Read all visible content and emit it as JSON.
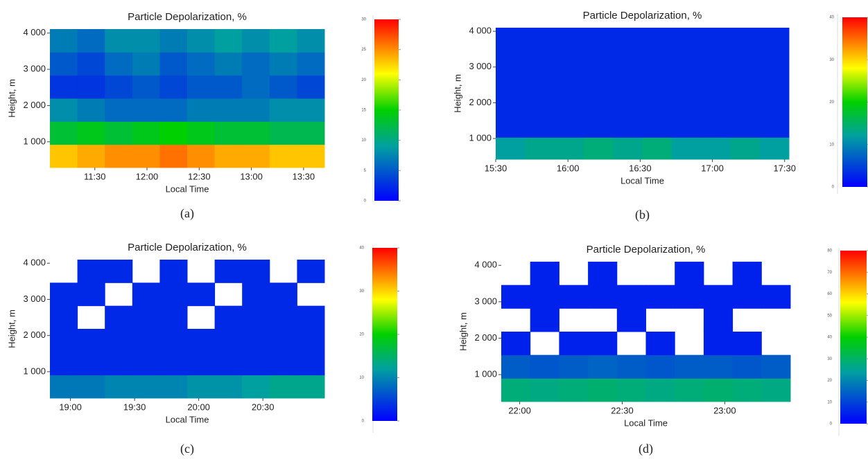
{
  "chart_data": [
    {
      "type": "heatmap",
      "caption": "(a)",
      "title": "Particle Depolarization, %",
      "xlabel": "Local Time",
      "ylabel": "Height, m",
      "xlim": [
        11.07,
        13.7
      ],
      "xticks": [
        {
          "value": 11.5,
          "label": "11:30"
        },
        {
          "value": 12,
          "label": "12:00"
        },
        {
          "value": 12.5,
          "label": "12:30"
        },
        {
          "value": 13,
          "label": "13:00"
        },
        {
          "value": 13.5,
          "label": "13:30"
        }
      ],
      "ylim": [
        290,
        4110
      ],
      "yticks": [
        {
          "value": 1000,
          "label": "1 000"
        },
        {
          "value": 2000,
          "label": "2 000"
        },
        {
          "value": 3000,
          "label": "3 000"
        },
        {
          "value": 4000,
          "label": "4 000"
        }
      ],
      "clim": [
        0,
        30
      ],
      "cticks": [
        0,
        5,
        10,
        15,
        20,
        25,
        30
      ],
      "values": [
        [
          23,
          24,
          25,
          25,
          26,
          25,
          24,
          24,
          23,
          23
        ],
        [
          13,
          14,
          13,
          14,
          15,
          14,
          13,
          13,
          12,
          12
        ],
        [
          8,
          7,
          6,
          6,
          6,
          7,
          7,
          7,
          8,
          8
        ],
        [
          3,
          3,
          4,
          5,
          4,
          5,
          5,
          6,
          5,
          4
        ],
        [
          5,
          4,
          6,
          7,
          5,
          6,
          7,
          6,
          7,
          6
        ],
        [
          7,
          6,
          8,
          8,
          7,
          8,
          9,
          8,
          9,
          8
        ]
      ]
    },
    {
      "type": "heatmap",
      "caption": "(b)",
      "title": "Particle Depolarization, %",
      "xlabel": "Local Time",
      "ylabel": "Height, m",
      "xlim": [
        15.5,
        17.53
      ],
      "xticks": [
        {
          "value": 15.5,
          "label": "15:30"
        },
        {
          "value": 16,
          "label": "16:00"
        },
        {
          "value": 16.5,
          "label": "16:30"
        },
        {
          "value": 17,
          "label": "17:00"
        },
        {
          "value": 17.5,
          "label": "17:30"
        }
      ],
      "ylim": [
        420,
        4100
      ],
      "yticks": [
        {
          "value": 1000,
          "label": "1 000"
        },
        {
          "value": 2000,
          "label": "2 000"
        },
        {
          "value": 3000,
          "label": "3 000"
        },
        {
          "value": 4000,
          "label": "4 000"
        }
      ],
      "clim": [
        0,
        40
      ],
      "cticks": [
        0,
        10,
        20,
        30,
        40
      ],
      "values": [
        [
          12,
          13,
          13,
          14,
          13,
          14,
          12,
          12,
          13,
          12
        ],
        [
          3,
          3,
          3,
          3,
          3,
          3,
          3,
          3,
          3,
          3
        ],
        [
          3,
          3,
          3,
          3,
          3,
          3,
          3,
          3,
          3,
          3
        ],
        [
          3,
          3,
          3,
          3,
          3,
          3,
          3,
          3,
          3,
          3
        ],
        [
          3,
          3,
          3,
          3,
          3,
          3,
          3,
          3,
          3,
          3
        ],
        [
          3,
          3,
          3,
          3,
          3,
          3,
          3,
          3,
          3,
          3
        ]
      ]
    },
    {
      "type": "heatmap",
      "caption": "(c)",
      "title": "Particle Depolarization, %",
      "xlabel": "Local Time",
      "ylabel": "Height, m",
      "xlim": [
        18.84,
        20.98
      ],
      "xticks": [
        {
          "value": 19,
          "label": "19:00"
        },
        {
          "value": 19.5,
          "label": "19:30"
        },
        {
          "value": 20,
          "label": "20:00"
        },
        {
          "value": 20.5,
          "label": "20:30"
        }
      ],
      "ylim": [
        270,
        4100
      ],
      "yticks": [
        {
          "value": 1000,
          "label": "1 000"
        },
        {
          "value": 2000,
          "label": "2 000"
        },
        {
          "value": 3000,
          "label": "3 000"
        },
        {
          "value": 4000,
          "label": "4 000"
        }
      ],
      "clim": [
        0,
        40
      ],
      "cticks": [
        0,
        10,
        20,
        30,
        40
      ],
      "values": [
        [
          9,
          9,
          10,
          10,
          10,
          11,
          11,
          12,
          13,
          13
        ],
        [
          3,
          3,
          3,
          3,
          3,
          3,
          3,
          3,
          3,
          3
        ],
        [
          3,
          3,
          3,
          3,
          3,
          3,
          3,
          3,
          3,
          3
        ],
        [
          3,
          null,
          3,
          3,
          3,
          null,
          3,
          3,
          3,
          3
        ],
        [
          3,
          3,
          null,
          3,
          3,
          3,
          null,
          3,
          3,
          null
        ],
        [
          null,
          3,
          3,
          null,
          3,
          null,
          3,
          3,
          null,
          3
        ]
      ]
    },
    {
      "type": "heatmap",
      "caption": "(d)",
      "title": "Particle Depolarization, %",
      "xlabel": "Local Time",
      "ylabel": "Height, m",
      "xlim": [
        21.91,
        23.32
      ],
      "xticks": [
        {
          "value": 22,
          "label": "22:00"
        },
        {
          "value": 22.5,
          "label": "22:30"
        },
        {
          "value": 23,
          "label": "23:00"
        }
      ],
      "ylim": [
        260,
        4100
      ],
      "yticks": [
        {
          "value": 1000,
          "label": "1 000"
        },
        {
          "value": 2000,
          "label": "2 000"
        },
        {
          "value": 3000,
          "label": "3 000"
        },
        {
          "value": 4000,
          "label": "4 000"
        }
      ],
      "clim": [
        0,
        80
      ],
      "cticks": [
        0,
        10,
        20,
        30,
        40,
        50,
        60,
        70,
        80
      ],
      "values": [
        [
          28,
          27,
          28,
          29,
          28,
          27,
          28,
          29,
          28,
          27
        ],
        [
          14,
          13,
          14,
          15,
          14,
          13,
          14,
          14,
          13,
          14
        ],
        [
          5,
          null,
          5,
          5,
          null,
          5,
          null,
          5,
          5,
          null
        ],
        [
          null,
          5,
          null,
          null,
          5,
          null,
          null,
          5,
          null,
          null
        ],
        [
          5,
          5,
          5,
          5,
          5,
          5,
          5,
          5,
          5,
          5
        ],
        [
          null,
          5,
          null,
          5,
          null,
          null,
          5,
          null,
          5,
          null
        ]
      ]
    }
  ]
}
